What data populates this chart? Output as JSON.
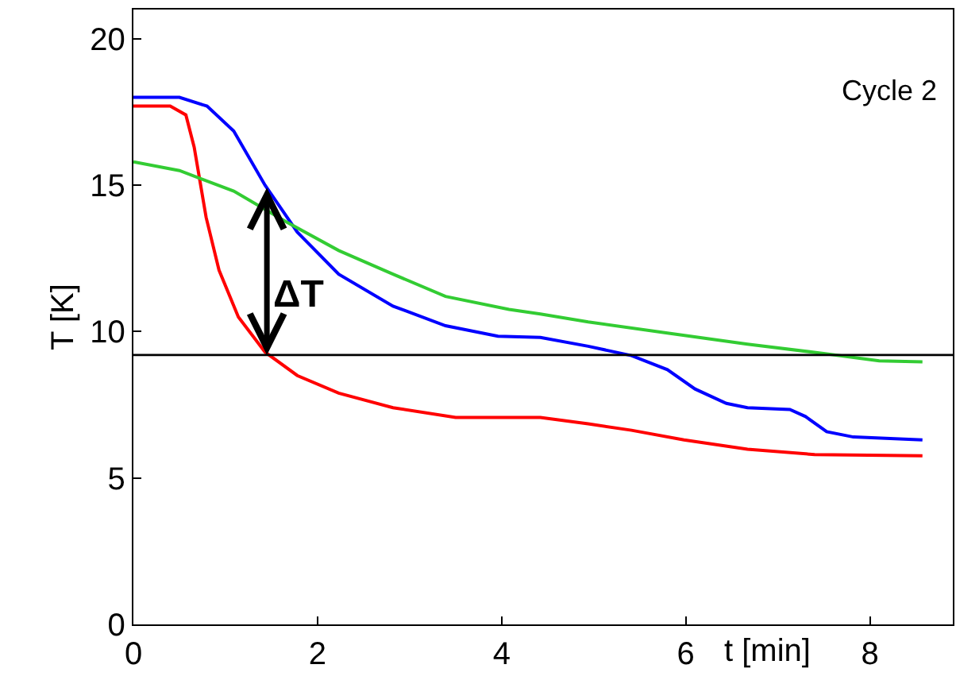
{
  "chart_data": {
    "type": "line",
    "xlabel": "t [min]",
    "ylabel": "T [K]",
    "xlim": [
      0,
      8.9
    ],
    "ylim": [
      0,
      21
    ],
    "xticks": [
      0,
      2,
      4,
      6,
      8
    ],
    "yticks": [
      0,
      5,
      10,
      15,
      20
    ],
    "marker": "none",
    "line_style": "solid",
    "series": [
      {
        "color": "#0000ff",
        "x": [
          0,
          0.5,
          0.8,
          1.09,
          1.43,
          1.78,
          2.23,
          2.82,
          3.39,
          3.96,
          4.42,
          4.94,
          5.41,
          5.8,
          6.1,
          6.44,
          6.67,
          7.13,
          7.3,
          7.53,
          7.82,
          8.57
        ],
        "values": [
          18.0,
          18.0,
          17.7,
          16.85,
          15.0,
          13.4,
          11.96,
          10.87,
          10.2,
          9.84,
          9.8,
          9.5,
          9.18,
          8.7,
          8.04,
          7.55,
          7.4,
          7.34,
          7.1,
          6.58,
          6.4,
          6.3
        ]
      },
      {
        "color": "#ff0000",
        "x": [
          0,
          0.4,
          0.57,
          0.66,
          0.79,
          0.93,
          1.14,
          1.43,
          1.78,
          2.23,
          2.82,
          3.5,
          4.42,
          4.94,
          5.41,
          5.98,
          6.67,
          7.4,
          8.57
        ],
        "values": [
          17.7,
          17.7,
          17.4,
          16.3,
          13.9,
          12.1,
          10.5,
          9.3,
          8.5,
          7.9,
          7.4,
          7.07,
          7.07,
          6.85,
          6.63,
          6.3,
          5.98,
          5.8,
          5.76
        ]
      },
      {
        "color": "#33cc33",
        "x": [
          0,
          0.5,
          1.09,
          1.66,
          2.23,
          2.82,
          3.39,
          4.08,
          4.42,
          4.94,
          5.8,
          6.67,
          7.53,
          8.1,
          8.57
        ],
        "values": [
          15.8,
          15.5,
          14.8,
          13.75,
          12.77,
          11.96,
          11.2,
          10.76,
          10.6,
          10.33,
          9.95,
          9.57,
          9.24,
          9.0,
          8.97
        ]
      }
    ],
    "ref_lines": [
      {
        "axis": "y",
        "value": 9.2,
        "color": "#000000"
      }
    ],
    "annotations": [
      "Cycle 2",
      {
        "text": "ΔT",
        "x": 1.45,
        "y": 15
      }
    ]
  }
}
